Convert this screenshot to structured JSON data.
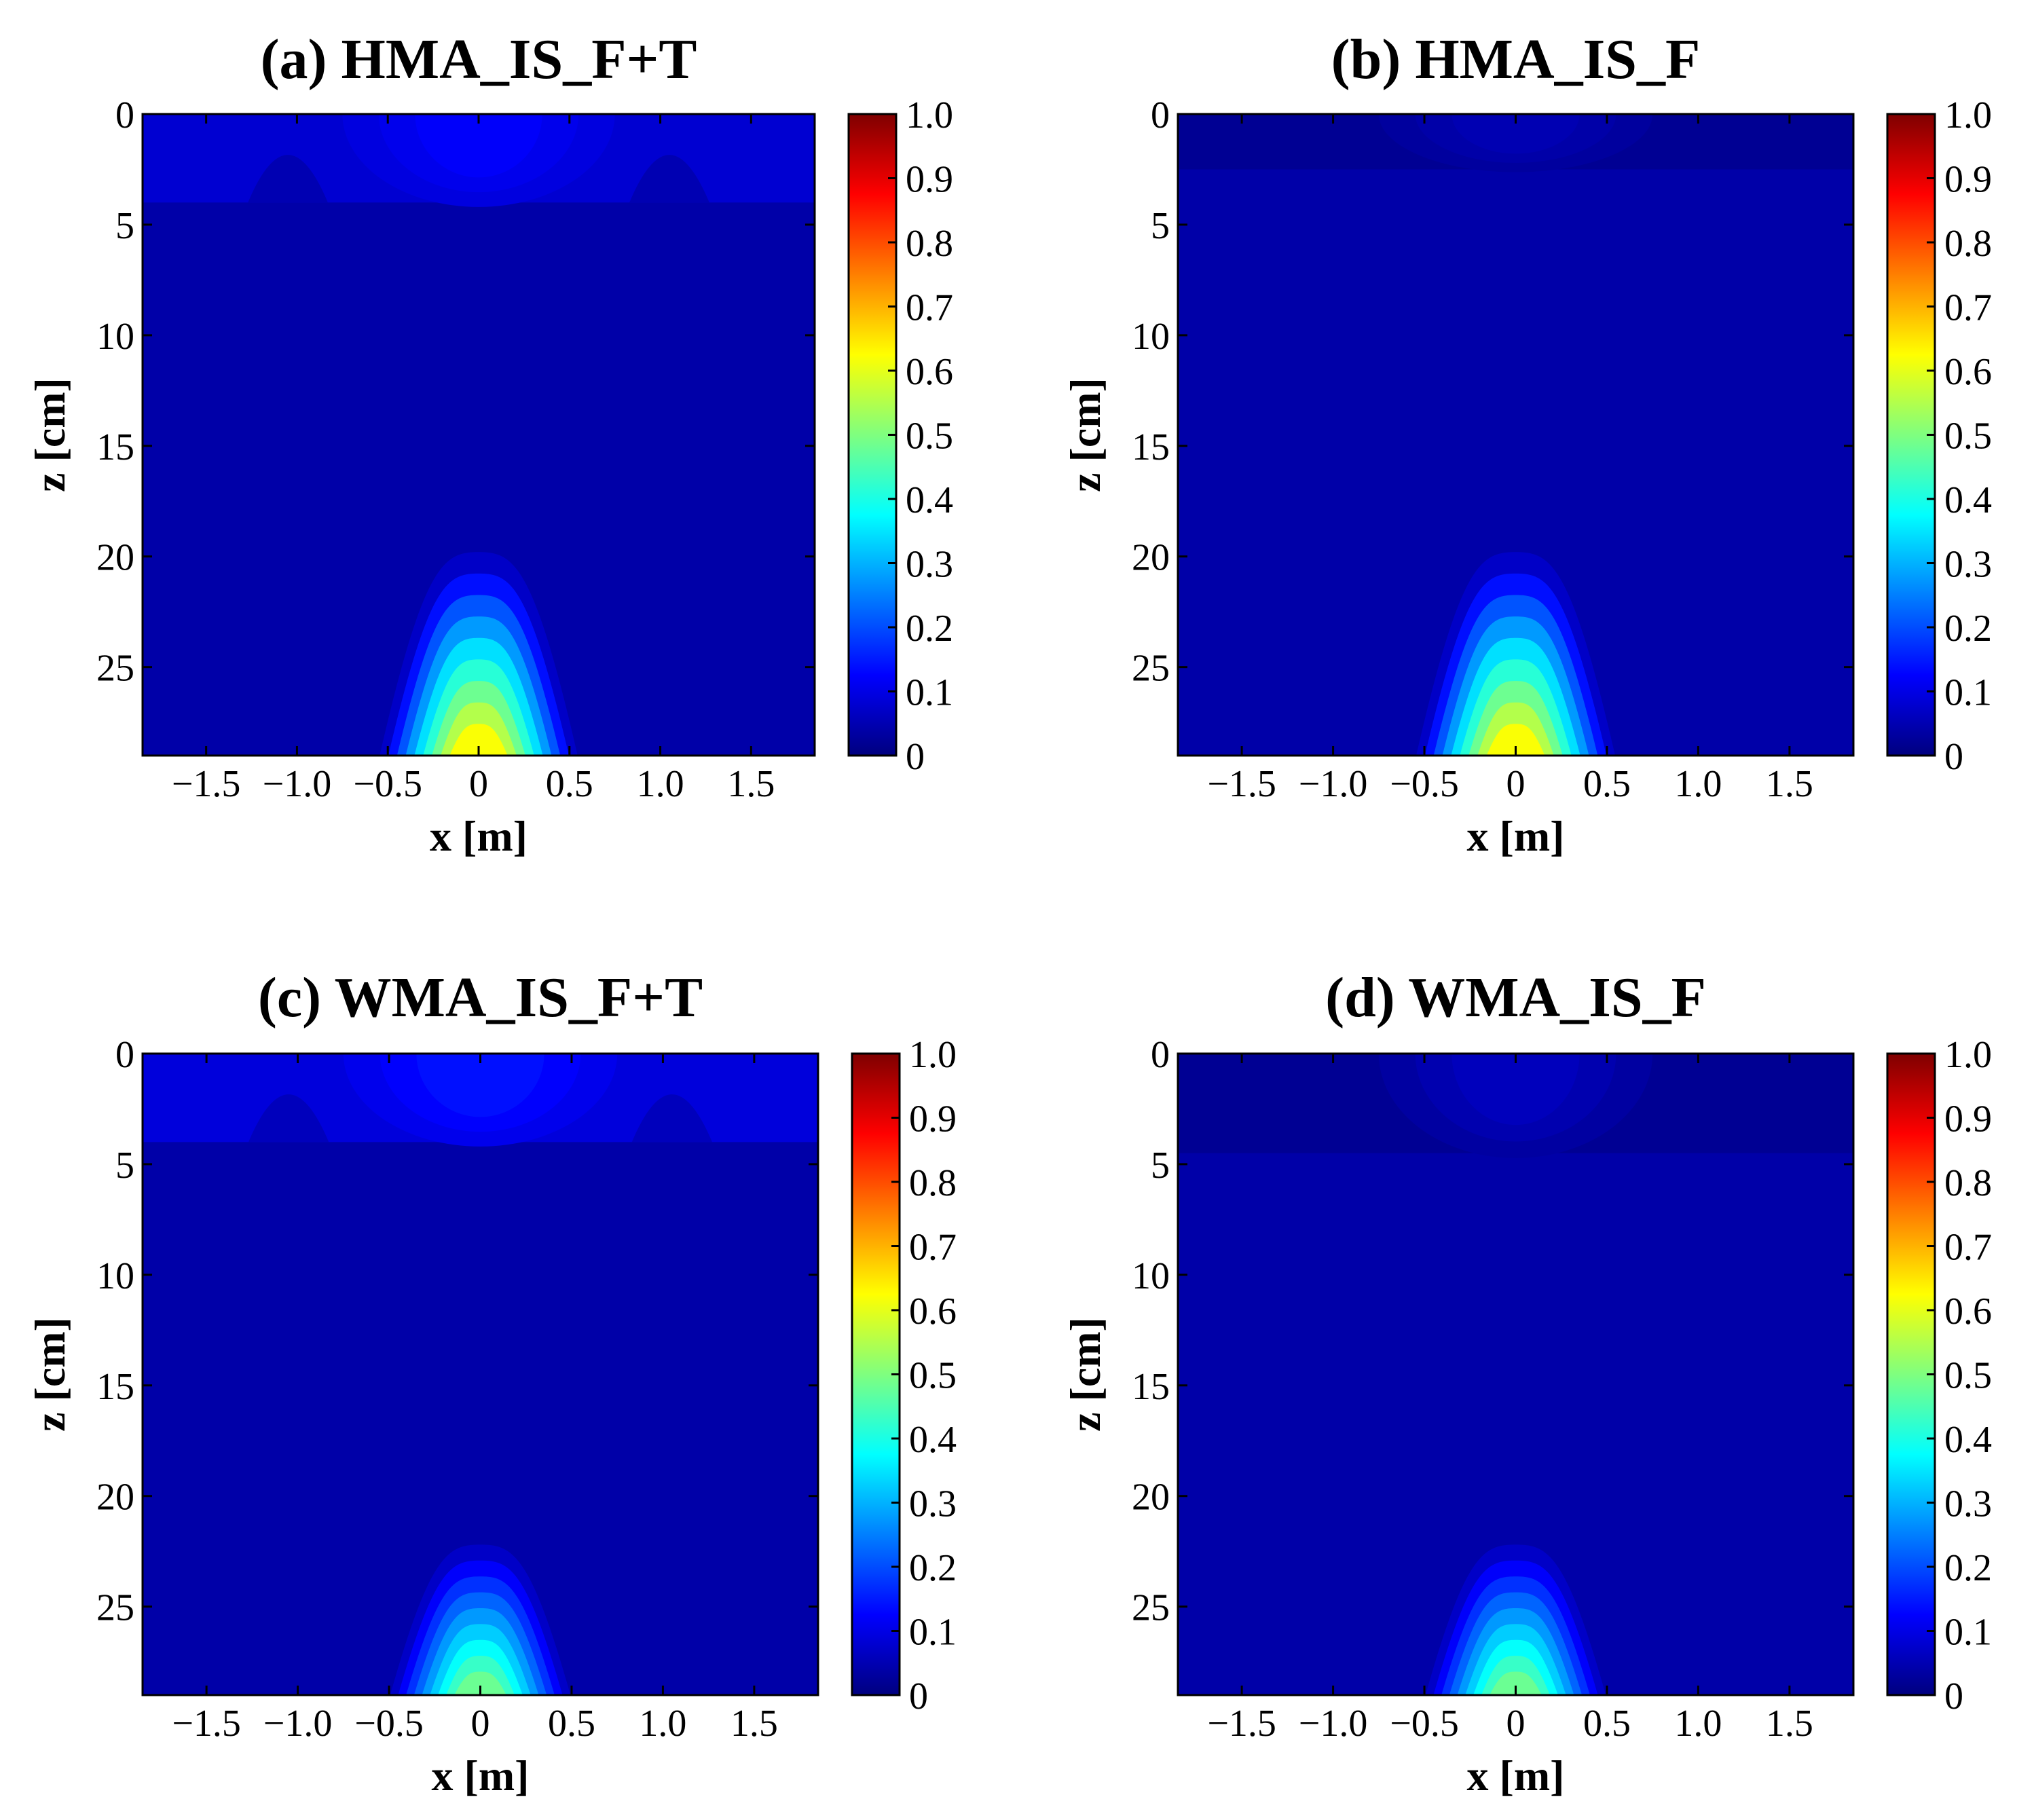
{
  "chart_data": [
    {
      "type": "heatmap",
      "panel": "a",
      "title": "(a) HMA_IS_F+T",
      "xlabel": "x [m]",
      "ylabel": "z [cm]",
      "xlim": [
        -1.85,
        1.85
      ],
      "ylim": [
        0,
        29
      ],
      "x_ticks": [
        -1.5,
        -1.0,
        -0.5,
        0,
        0.5,
        1.0,
        1.5
      ],
      "x_tick_labels": [
        "−1.5",
        "−1.0",
        "−0.5",
        "0",
        "0.5",
        "1.0",
        "1.5"
      ],
      "y_ticks": [
        0,
        5,
        10,
        15,
        20,
        25
      ],
      "y_tick_labels": [
        "0",
        "5",
        "10",
        "15",
        "20",
        "25"
      ],
      "colorbar": {
        "min": 0,
        "max": 1.0,
        "tick_labels": [
          "0",
          "0.1",
          "0.2",
          "0.3",
          "0.4",
          "0.5",
          "0.6",
          "0.7",
          "0.8",
          "0.9",
          "1.0"
        ]
      },
      "surface_layer": {
        "depth_cm": 4,
        "background_value": 0.08,
        "center_peak_value": 0.12,
        "side_bumps_x": [
          -1.05,
          1.05
        ]
      },
      "bottom_source": {
        "center_x": 0,
        "peak_value": 0.62,
        "base_half_width_m": 0.55,
        "top_depth_cm": 19.8
      }
    },
    {
      "type": "heatmap",
      "panel": "b",
      "title": "(b) HMA_IS_F",
      "xlabel": "x [m]",
      "ylabel": "z [cm]",
      "xlim": [
        -1.85,
        1.85
      ],
      "ylim": [
        0,
        29
      ],
      "x_ticks": [
        -1.5,
        -1.0,
        -0.5,
        0,
        0.5,
        1.0,
        1.5
      ],
      "x_tick_labels": [
        "−1.5",
        "−1.0",
        "−0.5",
        "0",
        "0.5",
        "1.0",
        "1.5"
      ],
      "y_ticks": [
        0,
        5,
        10,
        15,
        20,
        25
      ],
      "y_tick_labels": [
        "0",
        "5",
        "10",
        "15",
        "20",
        "25"
      ],
      "colorbar": {
        "min": 0,
        "max": 1.0,
        "tick_labels": [
          "0",
          "0.1",
          "0.2",
          "0.3",
          "0.4",
          "0.5",
          "0.6",
          "0.7",
          "0.8",
          "0.9",
          "1.0"
        ]
      },
      "surface_layer": {
        "depth_cm": 2.5,
        "background_value": 0.02,
        "center_peak_value": 0.05,
        "side_bumps_x": []
      },
      "bottom_source": {
        "center_x": 0,
        "peak_value": 0.62,
        "base_half_width_m": 0.55,
        "top_depth_cm": 19.8
      }
    },
    {
      "type": "heatmap",
      "panel": "c",
      "title": "(c) WMA_IS_F+T",
      "xlabel": "x [m]",
      "ylabel": "z [cm]",
      "xlim": [
        -1.85,
        1.85
      ],
      "ylim": [
        0,
        29
      ],
      "x_ticks": [
        -1.5,
        -1.0,
        -0.5,
        0,
        0.5,
        1.0,
        1.5
      ],
      "x_tick_labels": [
        "−1.5",
        "−1.0",
        "−0.5",
        "0",
        "0.5",
        "1.0",
        "1.5"
      ],
      "y_ticks": [
        0,
        5,
        10,
        15,
        20,
        25
      ],
      "y_tick_labels": [
        "0",
        "5",
        "10",
        "15",
        "20",
        "25"
      ],
      "colorbar": {
        "min": 0,
        "max": 1.0,
        "tick_labels": [
          "0",
          "0.1",
          "0.2",
          "0.3",
          "0.4",
          "0.5",
          "0.6",
          "0.7",
          "0.8",
          "0.9",
          "1.0"
        ]
      },
      "surface_layer": {
        "depth_cm": 4,
        "background_value": 0.09,
        "center_peak_value": 0.14,
        "side_bumps_x": [
          -1.05,
          1.05
        ]
      },
      "bottom_source": {
        "center_x": 0,
        "peak_value": 0.48,
        "base_half_width_m": 0.5,
        "top_depth_cm": 22.2
      }
    },
    {
      "type": "heatmap",
      "panel": "d",
      "title": "(d) WMA_IS_F",
      "xlabel": "x [m]",
      "ylabel": "z [cm]",
      "xlim": [
        -1.85,
        1.85
      ],
      "ylim": [
        0,
        29
      ],
      "x_ticks": [
        -1.5,
        -1.0,
        -0.5,
        0,
        0.5,
        1.0,
        1.5
      ],
      "x_tick_labels": [
        "−1.5",
        "−1.0",
        "−0.5",
        "0",
        "0.5",
        "1.0",
        "1.5"
      ],
      "y_ticks": [
        0,
        5,
        10,
        15,
        20,
        25
      ],
      "y_tick_labels": [
        "0",
        "5",
        "10",
        "15",
        "20",
        "25"
      ],
      "colorbar": {
        "min": 0,
        "max": 1.0,
        "tick_labels": [
          "0",
          "0.1",
          "0.2",
          "0.3",
          "0.4",
          "0.5",
          "0.6",
          "0.7",
          "0.8",
          "0.9",
          "1.0"
        ]
      },
      "surface_layer": {
        "depth_cm": 4.5,
        "background_value": 0.02,
        "center_peak_value": 0.06,
        "side_bumps_x": []
      },
      "bottom_source": {
        "center_x": 0,
        "peak_value": 0.48,
        "base_half_width_m": 0.5,
        "top_depth_cm": 22.2
      }
    }
  ],
  "colormap": {
    "name": "jet",
    "stops": [
      "#00007f",
      "#0000ff",
      "#007fff",
      "#00ffff",
      "#7fff7f",
      "#ffff00",
      "#ff7f00",
      "#ff0000",
      "#7f0000"
    ]
  }
}
